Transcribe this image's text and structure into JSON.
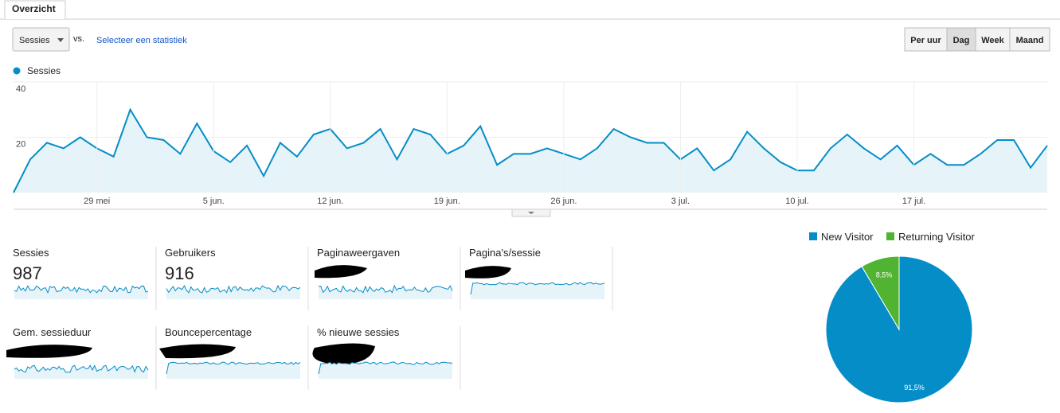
{
  "tab": "Overzicht",
  "toolbar": {
    "metric": "Sessies",
    "vs": "vs.",
    "link": "Selecteer een statistiek",
    "buttons": [
      "Per uur",
      "Dag",
      "Week",
      "Maand"
    ]
  },
  "metrics": [
    {
      "label": "Sessies",
      "value": "987"
    },
    {
      "label": "Gebruikers",
      "value": "916"
    },
    {
      "label": "Paginaweergaven"
    },
    {
      "label": "Pagina's/sessie"
    },
    {
      "label": "Gem. sessieduur"
    },
    {
      "label": "Bouncepercentage"
    },
    {
      "label": "% nieuwe sessies"
    }
  ],
  "chart_data": [
    {
      "type": "line",
      "categories": [
        null,
        null,
        null,
        null,
        null,
        "29 mei",
        null,
        null,
        null,
        null,
        null,
        null,
        "5 jun.",
        null,
        null,
        null,
        null,
        null,
        null,
        "12 jun.",
        null,
        null,
        null,
        null,
        null,
        null,
        "19 jun.",
        null,
        null,
        null,
        null,
        null,
        null,
        "26 jun.",
        null,
        null,
        null,
        null,
        null,
        null,
        "3 jul.",
        null,
        null,
        null,
        null,
        null,
        null,
        "10 jul.",
        null,
        null,
        null,
        null,
        null,
        null,
        "17 jul.",
        null,
        null,
        null,
        null,
        null,
        null,
        null,
        null
      ],
      "series": [
        {
          "name": "Sessies",
          "color": "#058dc7",
          "values": [
            0,
            12,
            18,
            16,
            20,
            16,
            13,
            30,
            20,
            19,
            14,
            25,
            15,
            11,
            17,
            6,
            18,
            13,
            21,
            23,
            16,
            18,
            23,
            12,
            23,
            21,
            14,
            17,
            24,
            10,
            14,
            14,
            16,
            14,
            12,
            16,
            23,
            20,
            18,
            18,
            12,
            16,
            8,
            12,
            22,
            16,
            11,
            8,
            8,
            16,
            21,
            16,
            12,
            17,
            10,
            14,
            10,
            10,
            14,
            19,
            19,
            9,
            17
          ]
        }
      ],
      "ylim": [
        0,
        40
      ],
      "yticks": [
        20,
        40
      ],
      "grid": true
    },
    {
      "type": "pie",
      "categories": [
        "New Visitor",
        "Returning Visitor"
      ],
      "values": [
        91.5,
        8.5
      ],
      "value_labels": [
        "91,5%",
        "8,5%"
      ],
      "colors": [
        "#058dc7",
        "#50b432"
      ]
    }
  ]
}
